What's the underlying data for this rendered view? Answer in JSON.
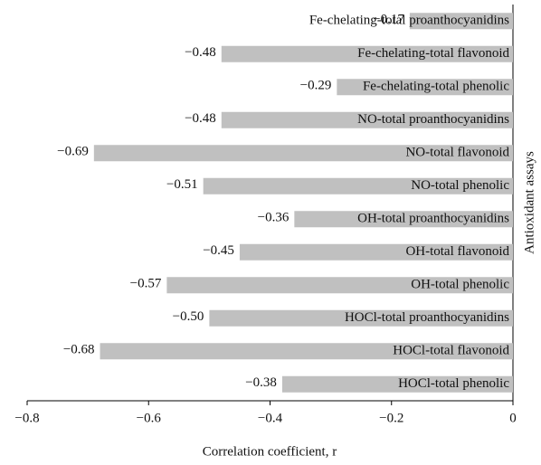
{
  "chart_data": {
    "type": "bar",
    "orientation": "horizontal",
    "x_label": "Correlation coefficient, r",
    "y_label": "Antioxidant assays",
    "categories": [
      "Fe-chelating-total proanthocyanidins",
      "Fe-chelating-total flavonoid",
      "Fe-chelating-total phenolic",
      "NO-total proanthocyanidins",
      "NO-total flavonoid",
      "NO-total phenolic",
      "OH-total proanthocyanidins",
      "OH-total flavonoid",
      "OH-total phenolic",
      "HOCl-total proanthocyanidins",
      "HOCl-total flavonoid",
      "HOCl-total phenolic"
    ],
    "values": [
      -0.17,
      -0.48,
      -0.29,
      -0.48,
      -0.69,
      -0.51,
      -0.36,
      -0.45,
      -0.57,
      -0.5,
      -0.68,
      -0.38
    ],
    "value_labels": [
      "−0.17",
      "−0.48",
      "−0.29",
      "−0.48",
      "−0.69",
      "−0.51",
      "−0.36",
      "−0.45",
      "−0.57",
      "−0.50",
      "−0.68",
      "−0.38"
    ],
    "color": "#c0c0c0",
    "xlim": [
      -0.8,
      0
    ],
    "xticks": [
      {
        "value": -0.8,
        "label": "−0.8"
      },
      {
        "value": -0.6,
        "label": "−0.6"
      },
      {
        "value": -0.4,
        "label": "−0.4"
      },
      {
        "value": -0.2,
        "label": "−0.2"
      },
      0
    ]
  }
}
